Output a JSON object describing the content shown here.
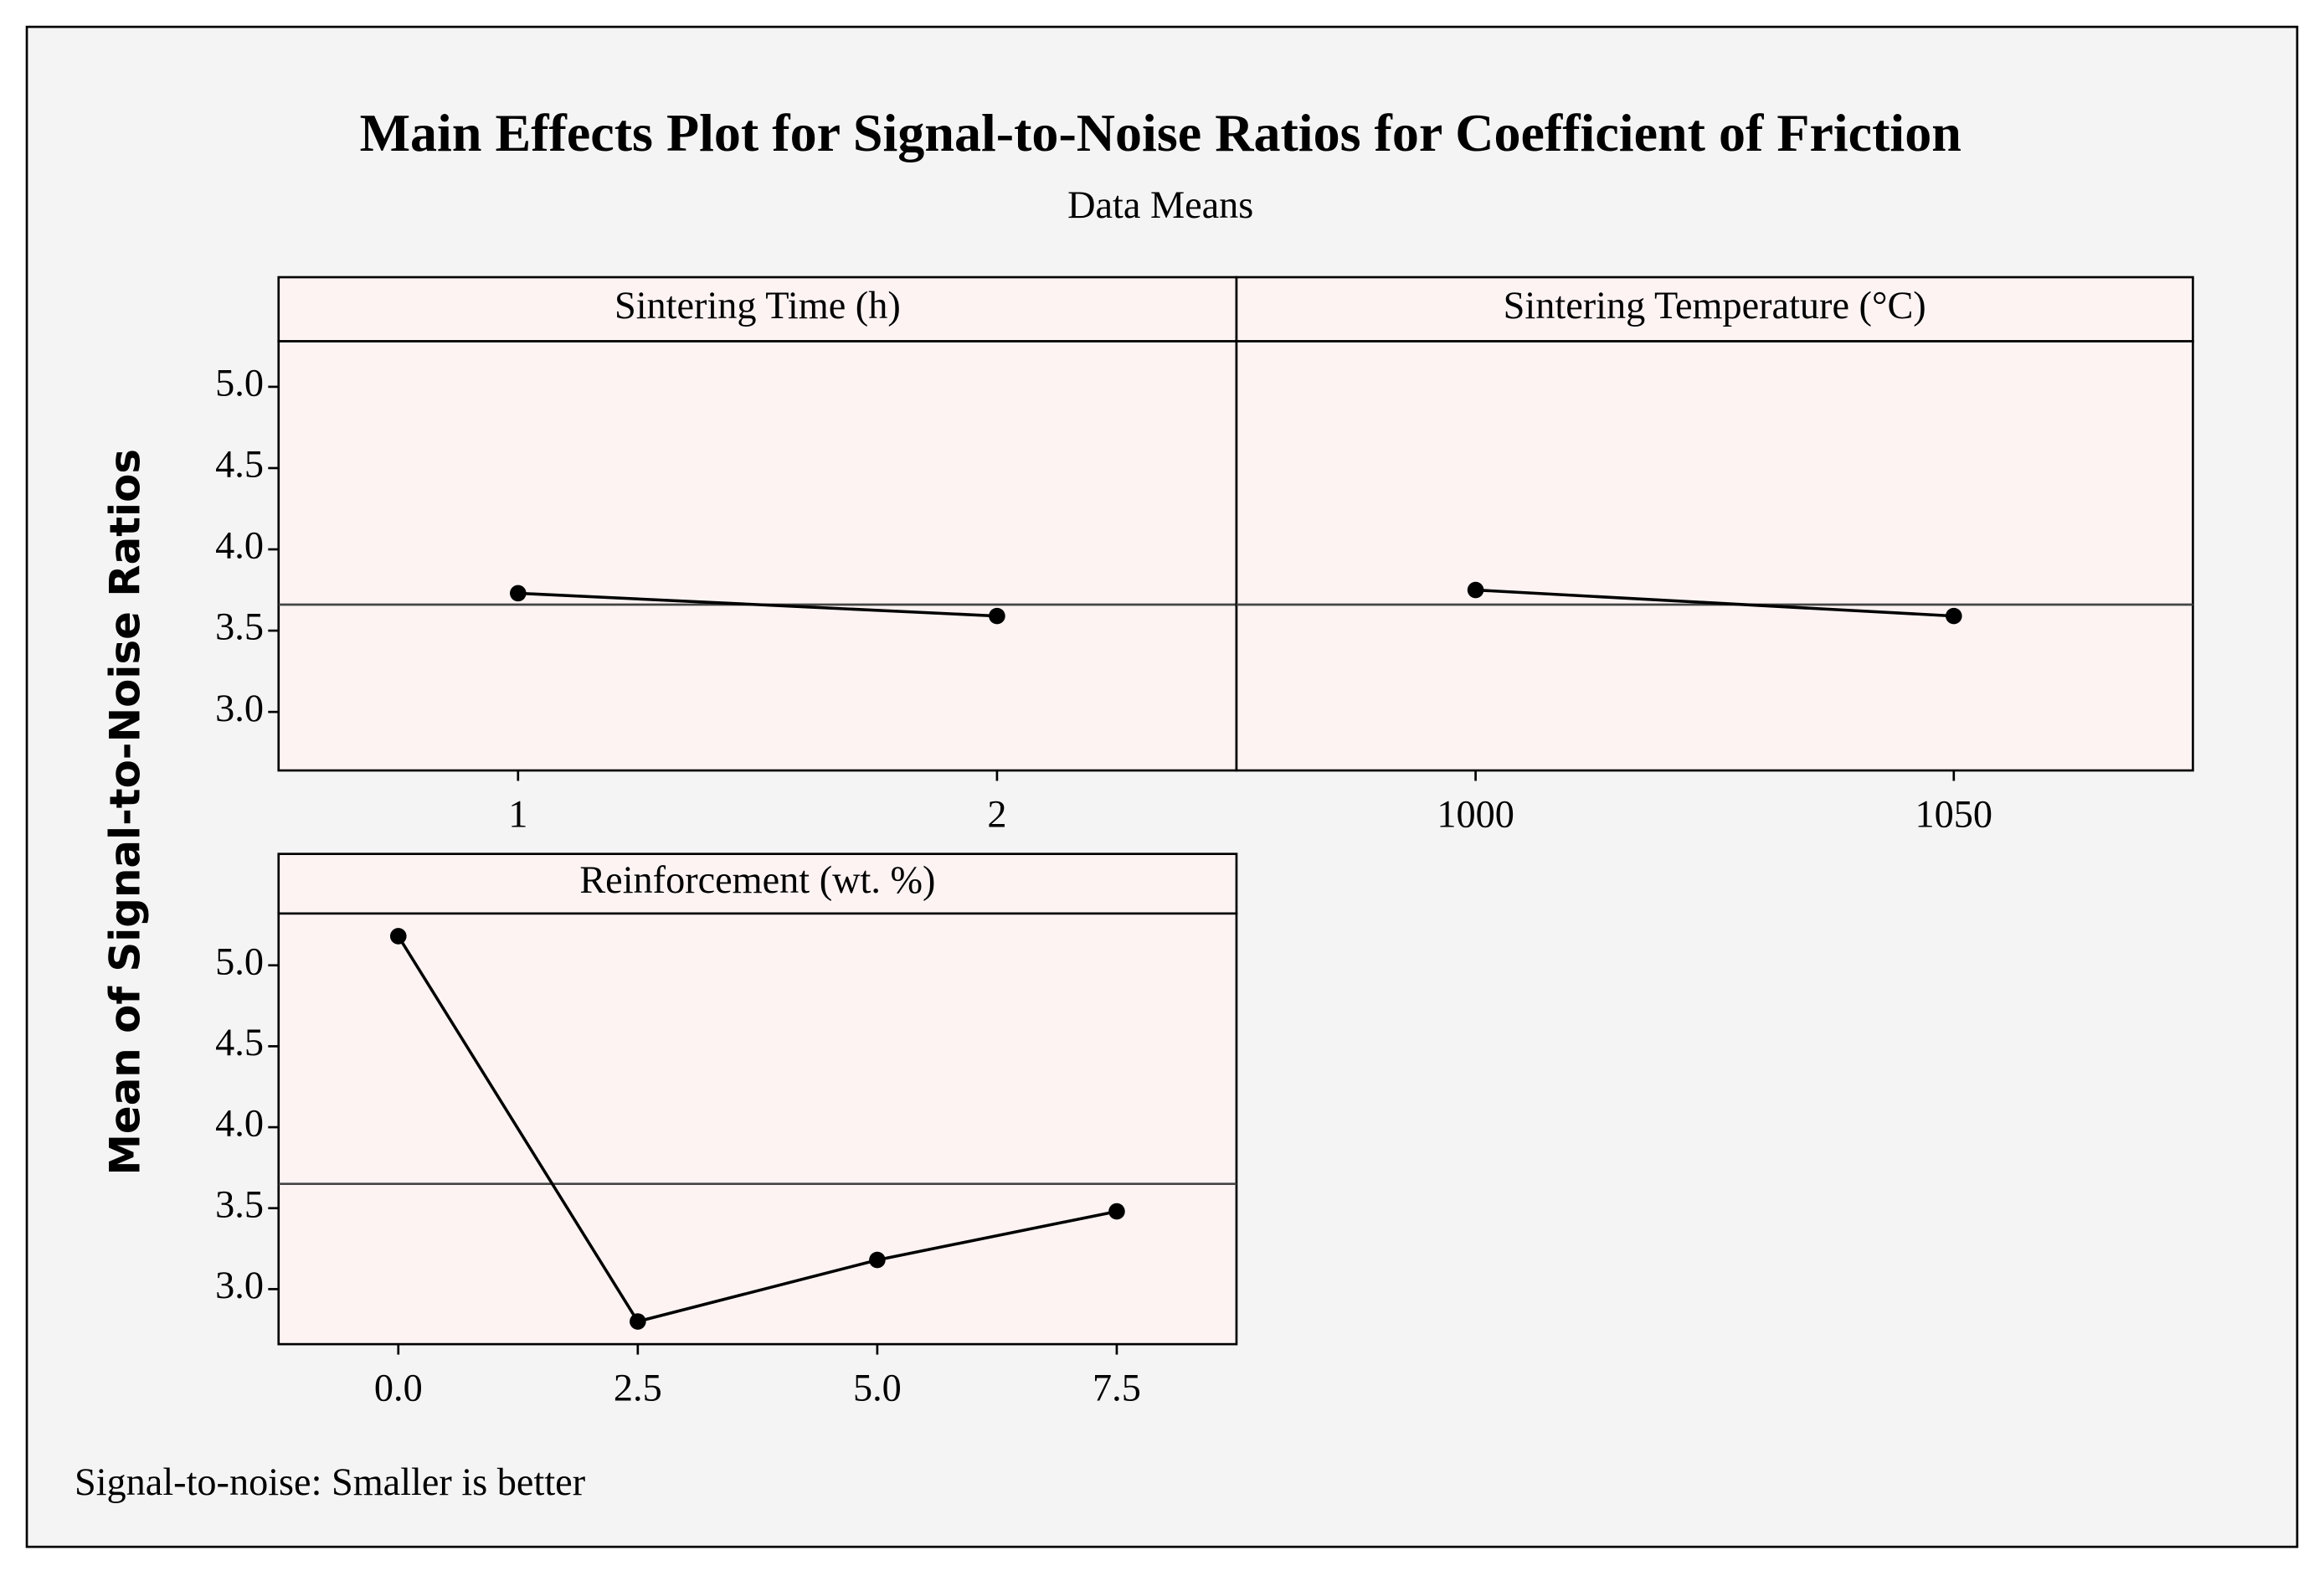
{
  "title": "Main Effects Plot for Signal-to-Noise Ratios for Coefficient of Friction",
  "subtitle": "Data Means",
  "ylabel": "Mean of Signal-to-Noise Ratios",
  "note": "Signal-to-noise: Smaller is better",
  "chart_data": [
    {
      "type": "line",
      "title": "Sintering Time (h)",
      "categories": [
        "1",
        "2"
      ],
      "values": [
        3.73,
        3.59
      ],
      "color": "#000000",
      "hline": 3.66,
      "ylim": [
        2.64,
        5.28
      ],
      "yticks": [
        {
          "value": 3,
          "label": "3.0"
        },
        {
          "value": 3.5,
          "label": "3.5"
        },
        {
          "value": 4,
          "label": "4.0"
        },
        {
          "value": 4.5,
          "label": "4.5"
        },
        {
          "value": 5,
          "label": "5.0"
        }
      ]
    },
    {
      "type": "line",
      "title": "Sintering Temperature (°C)",
      "categories": [
        "1000",
        "1050"
      ],
      "values": [
        3.75,
        3.59
      ],
      "color": "#000000",
      "hline": 3.66,
      "ylim": [
        2.64,
        5.28
      ]
    },
    {
      "type": "line",
      "title": "Reinforcement (wt. %)",
      "categories": [
        "0.0",
        "2.5",
        "5.0",
        "7.5"
      ],
      "values": [
        5.18,
        2.8,
        3.18,
        3.48
      ],
      "color": "#000000",
      "hline": 3.65,
      "ylim": [
        2.66,
        5.32
      ],
      "yticks": [
        {
          "value": 3,
          "label": "3.0"
        },
        {
          "value": 3.5,
          "label": "3.5"
        },
        {
          "value": 4,
          "label": "4.0"
        },
        {
          "value": 4.5,
          "label": "4.5"
        },
        {
          "value": 5,
          "label": "5.0"
        }
      ]
    }
  ]
}
